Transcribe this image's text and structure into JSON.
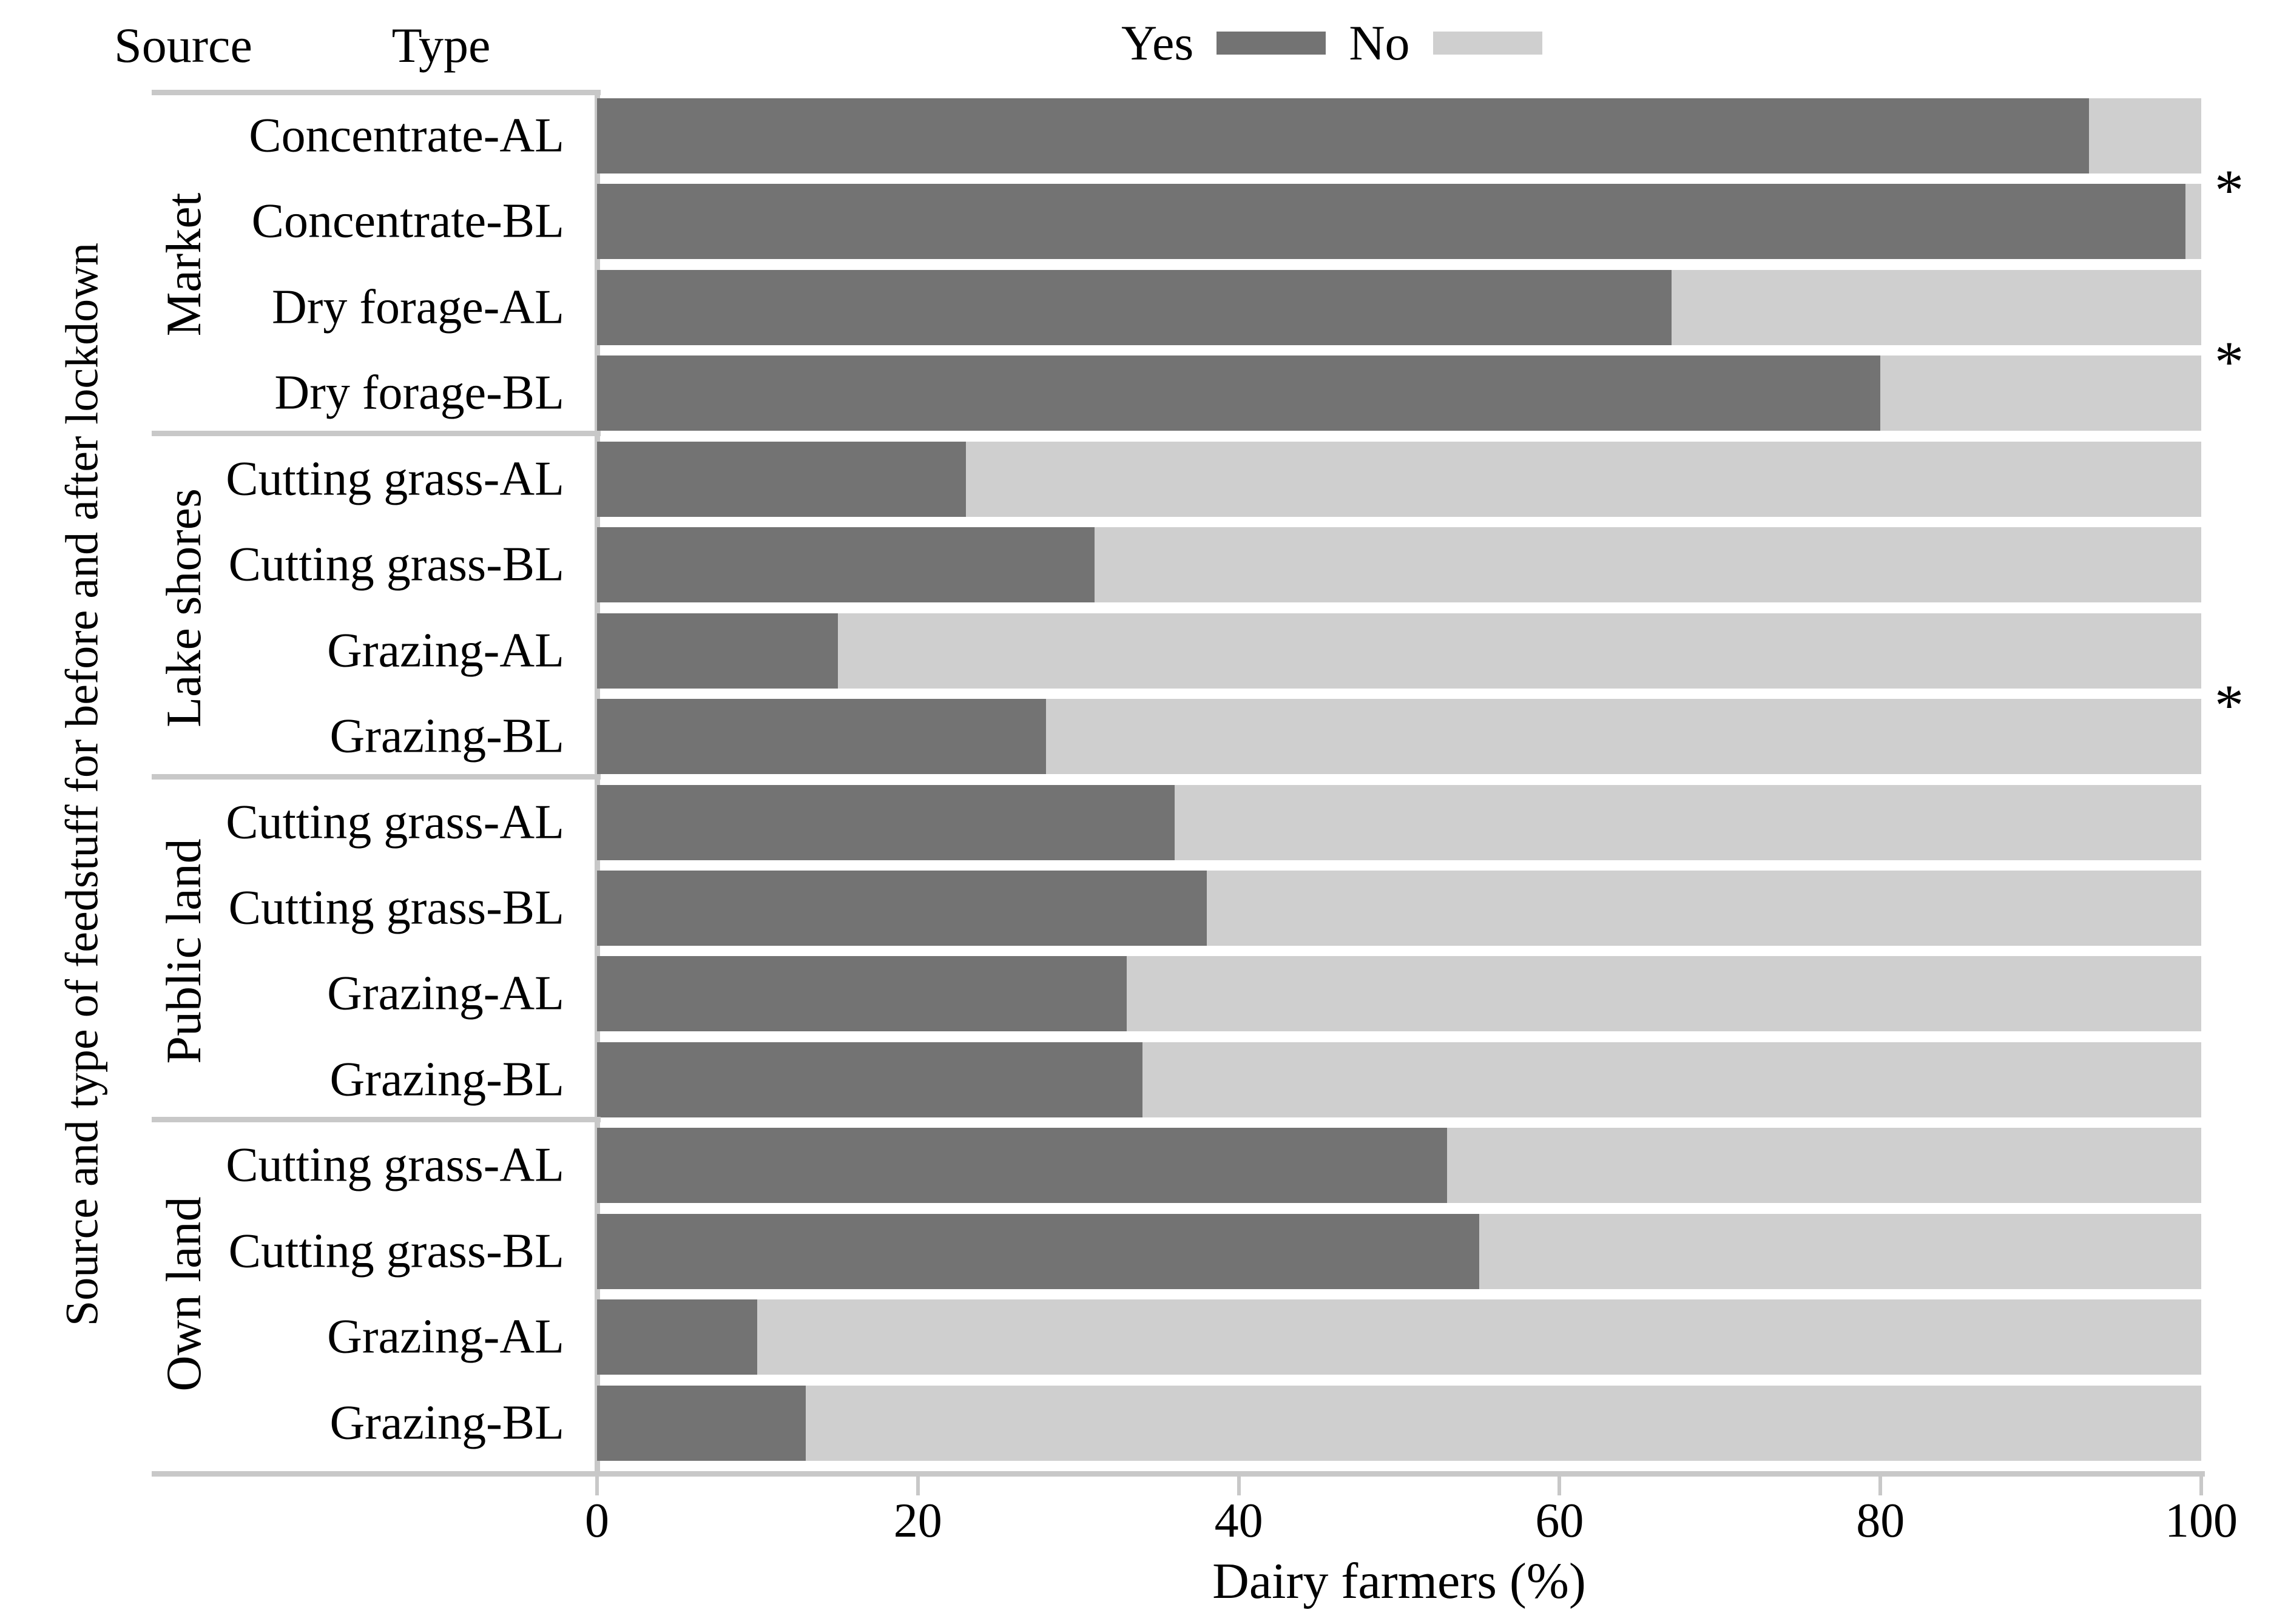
{
  "header": {
    "source": "Source",
    "type": "Type"
  },
  "legend": {
    "yes_label": "Yes",
    "no_label": "No",
    "yes_color": "#737373",
    "no_color": "#cfcfcf"
  },
  "axis": {
    "x_title": "Dairy farmers (%)",
    "y_title": "Source and type of feedstuff for before and after lockdown",
    "x_ticks": [
      0,
      20,
      40,
      60,
      80,
      100
    ],
    "x_min": 0,
    "x_max": 100
  },
  "chart_data": {
    "type": "bar",
    "orientation": "horizontal",
    "stacked": true,
    "grid": false,
    "legend_position": "top",
    "series_names": [
      "Yes",
      "No"
    ],
    "significance_marker": "*",
    "significance_after_rows": [
      0,
      2,
      6
    ],
    "groups": [
      {
        "source": "Market",
        "rows": [
          {
            "type": "Concentrate-AL",
            "yes": 93,
            "no": 7
          },
          {
            "type": "Concentrate-BL",
            "yes": 99,
            "no": 1
          },
          {
            "type": "Dry forage-AL",
            "yes": 67,
            "no": 33
          },
          {
            "type": "Dry forage-BL",
            "yes": 80,
            "no": 20
          }
        ]
      },
      {
        "source": "Lake shores",
        "rows": [
          {
            "type": "Cutting grass-AL",
            "yes": 23,
            "no": 77
          },
          {
            "type": "Cutting grass-BL",
            "yes": 31,
            "no": 69
          },
          {
            "type": "Grazing-AL",
            "yes": 15,
            "no": 85
          },
          {
            "type": "Grazing-BL",
            "yes": 28,
            "no": 72
          }
        ]
      },
      {
        "source": "Public land",
        "rows": [
          {
            "type": "Cutting grass-AL",
            "yes": 36,
            "no": 64
          },
          {
            "type": "Cutting grass-BL",
            "yes": 38,
            "no": 62
          },
          {
            "type": "Grazing-AL",
            "yes": 33,
            "no": 67
          },
          {
            "type": "Grazing-BL",
            "yes": 34,
            "no": 66
          }
        ]
      },
      {
        "source": "Own land",
        "rows": [
          {
            "type": "Cutting grass-AL",
            "yes": 53,
            "no": 47
          },
          {
            "type": "Cutting grass-BL",
            "yes": 55,
            "no": 45
          },
          {
            "type": "Grazing-AL",
            "yes": 10,
            "no": 90
          },
          {
            "type": "Grazing-BL",
            "yes": 13,
            "no": 87
          }
        ]
      }
    ]
  }
}
